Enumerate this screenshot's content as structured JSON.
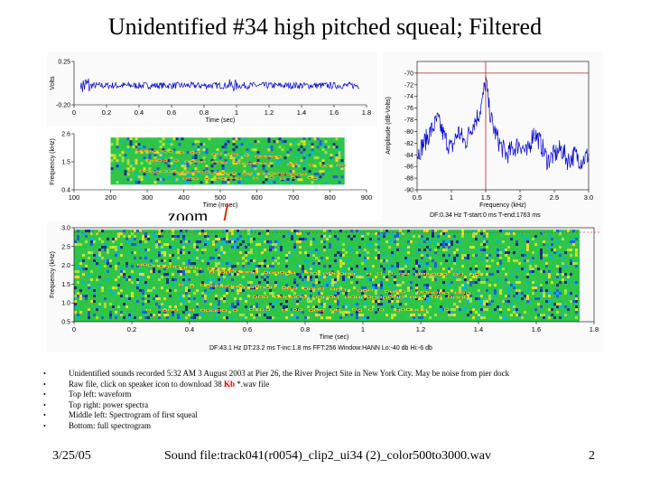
{
  "slide": {
    "title": "Unidentified #34 high pitched squeal; Filtered",
    "zoom_label": "zoom",
    "bullets": [
      {
        "text": "Unidentified sounds recorded 5:32 AM 3 August 2003 at Pier 26, the River Project Site in New York City. May be noise from pier dock"
      },
      {
        "text_before": "Raw file, click on speaker icon to download 38 ",
        "kb": "Kb",
        "text_after": " *.wav file"
      },
      {
        "text": "Top left: waveform"
      },
      {
        "text": "Top right: power spectra"
      },
      {
        "text": "Middle left: Spectrogram of first squeal"
      },
      {
        "text": "Bottom: full spectrogram"
      }
    ],
    "footer_date": "3/25/05",
    "footer_file": "Sound file:track041(r0054)_clip2_ui34 (2)_color500to3000.wav",
    "footer_page": "2"
  },
  "chart_data": [
    {
      "type": "line",
      "name": "waveform",
      "xlabel": "Time (sec)",
      "ylabel": "Volts",
      "xlim": [
        0,
        1.8
      ],
      "ylim": [
        -0.2,
        0.25
      ],
      "xticks": [
        "0",
        "0.2",
        "0.4",
        "0.6",
        "0.8",
        "1",
        "1.2",
        "1.4",
        "1.6",
        "1.8"
      ],
      "yticks": [
        "0.25",
        "-0.20"
      ],
      "color": "#0000cc"
    },
    {
      "type": "line",
      "name": "power-spectrum",
      "xlabel": "Frequency (kHz)",
      "ylabel": "Amplitude (dB-Volts)",
      "xlim": [
        0.5,
        3.0
      ],
      "ylim": [
        -90,
        -68
      ],
      "xticks": [
        "0.5",
        "1",
        "1.5",
        "2",
        "2.5",
        "3.0"
      ],
      "yticks": [
        "-70",
        "-72",
        "-74",
        "-76",
        "-78",
        "-80",
        "-82",
        "-84",
        "-86",
        "-88",
        "-90"
      ],
      "cursor_x": 1.5,
      "cursor_y": -70,
      "x": [
        0.5,
        0.6,
        0.7,
        0.8,
        0.9,
        1.0,
        1.1,
        1.2,
        1.3,
        1.4,
        1.45,
        1.5,
        1.55,
        1.6,
        1.7,
        1.8,
        1.9,
        2.0,
        2.1,
        2.2,
        2.3,
        2.4,
        2.5,
        2.6,
        2.7,
        2.8,
        2.9,
        3.0
      ],
      "y": [
        -84,
        -82,
        -80,
        -78,
        -81,
        -83,
        -80,
        -82,
        -79,
        -77,
        -75,
        -71,
        -76,
        -79,
        -82,
        -84,
        -83,
        -82,
        -84,
        -80,
        -82,
        -85,
        -84,
        -83,
        -85,
        -84,
        -85,
        -84
      ],
      "footer": "DF:0.34 Hz   T-start:0 ms   T-end:1763 ms",
      "color": "#0000cc"
    },
    {
      "type": "heatmap",
      "name": "spectrogram-first-squeal",
      "xlabel": "Time (msec)",
      "ylabel": "Frequency (kHz)",
      "xlim": [
        100,
        900
      ],
      "ylim": [
        0.4,
        2.6
      ],
      "xticks": [
        "100",
        "200",
        "300",
        "400",
        "500",
        "600",
        "700",
        "800",
        "900"
      ],
      "yticks": [
        "2.6",
        "1.5",
        "0.4"
      ]
    },
    {
      "type": "heatmap",
      "name": "spectrogram-full",
      "xlabel": "Time (sec)",
      "ylabel": "Frequency (kHz)",
      "xlim": [
        0,
        1.8
      ],
      "ylim": [
        0.5,
        3.0
      ],
      "xticks": [
        "0",
        "0.2",
        "0.4",
        "0.6",
        "0.8",
        "1",
        "1.2",
        "1.4",
        "1.6",
        "1.8"
      ],
      "yticks": [
        "3.0",
        "2.5",
        "2.0",
        "1.5",
        "1.0",
        "0.5"
      ],
      "footer": "DF:43.1 Hz   DT:23.2 ms   T-inc:1.8 ms   FFT:256   Window:HANN   Lo:-40 db   Hi:-6 db"
    }
  ]
}
